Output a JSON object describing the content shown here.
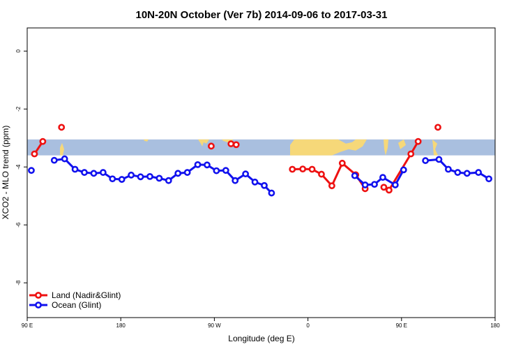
{
  "chart_data": {
    "type": "line",
    "title": "10N-20N October (Ver 7b)   2014-09-06 to 2017-03-31",
    "xlabel": "Longitude (deg E)",
    "ylabel": "XCO2 - MLO trend (ppm)",
    "xlim": [
      90,
      540
    ],
    "ylim": [
      -9.2,
      0.8
    ],
    "x_ticks": [
      {
        "value": 90,
        "label": "90 E"
      },
      {
        "value": 180,
        "label": "180"
      },
      {
        "value": 270,
        "label": "90 W"
      },
      {
        "value": 360,
        "label": "0"
      },
      {
        "value": 450,
        "label": "90 E"
      },
      {
        "value": 540,
        "label": "180"
      }
    ],
    "y_ticks": [
      {
        "value": 0,
        "label": "0"
      },
      {
        "value": -2,
        "label": "-2"
      },
      {
        "value": -4,
        "label": "-4"
      },
      {
        "value": -6,
        "label": "-6"
      },
      {
        "value": -8,
        "label": "-8"
      }
    ],
    "map_band": {
      "y_top": -3.05,
      "y_bottom": -3.6,
      "ocean_color": "#a9bfdf",
      "land_color": "#f6d879"
    },
    "legend": {
      "placement": "bottom-left"
    },
    "series": [
      {
        "name": "Land (Nadir&Glint)",
        "color": "#ee1111",
        "points": [
          {
            "x": 97,
            "y": -3.55
          },
          {
            "x": 105,
            "y": -3.12
          },
          {
            "x": 123,
            "y": -2.63
          },
          {
            "x": 267,
            "y": -3.28
          },
          {
            "x": 286,
            "y": -3.2
          },
          {
            "x": 291,
            "y": -3.23
          },
          {
            "x": 345,
            "y": -4.08
          },
          {
            "x": 355,
            "y": -4.07
          },
          {
            "x": 364,
            "y": -4.08
          },
          {
            "x": 373,
            "y": -4.25
          },
          {
            "x": 383,
            "y": -4.65
          },
          {
            "x": 393,
            "y": -3.87
          },
          {
            "x": 406,
            "y": -4.27
          },
          {
            "x": 415,
            "y": -4.75
          },
          {
            "x": 433,
            "y": -4.7
          },
          {
            "x": 438,
            "y": -4.8
          },
          {
            "x": 459,
            "y": -3.55
          },
          {
            "x": 466,
            "y": -3.12
          },
          {
            "x": 485,
            "y": -2.63
          }
        ],
        "segments": [
          [
            0,
            1
          ],
          [
            6,
            7,
            8,
            9,
            10,
            11,
            12,
            13
          ],
          [
            14,
            15
          ],
          [
            15,
            16,
            17
          ]
        ]
      },
      {
        "name": "Ocean (Glint)",
        "color": "#1111ee",
        "points": [
          {
            "x": 94,
            "y": -4.12
          },
          {
            "x": 116,
            "y": -3.77
          },
          {
            "x": 126,
            "y": -3.72
          },
          {
            "x": 136,
            "y": -4.08
          },
          {
            "x": 145,
            "y": -4.19
          },
          {
            "x": 154,
            "y": -4.22
          },
          {
            "x": 163,
            "y": -4.19
          },
          {
            "x": 172,
            "y": -4.41
          },
          {
            "x": 181,
            "y": -4.43
          },
          {
            "x": 190,
            "y": -4.28
          },
          {
            "x": 199,
            "y": -4.34
          },
          {
            "x": 208,
            "y": -4.33
          },
          {
            "x": 217,
            "y": -4.39
          },
          {
            "x": 226,
            "y": -4.47
          },
          {
            "x": 235,
            "y": -4.22
          },
          {
            "x": 244,
            "y": -4.19
          },
          {
            "x": 254,
            "y": -3.92
          },
          {
            "x": 263,
            "y": -3.93
          },
          {
            "x": 272,
            "y": -4.13
          },
          {
            "x": 281,
            "y": -4.12
          },
          {
            "x": 290,
            "y": -4.47
          },
          {
            "x": 300,
            "y": -4.24
          },
          {
            "x": 309,
            "y": -4.52
          },
          {
            "x": 318,
            "y": -4.64
          },
          {
            "x": 325,
            "y": -4.9
          },
          {
            "x": 405,
            "y": -4.3
          },
          {
            "x": 415,
            "y": -4.62
          },
          {
            "x": 424,
            "y": -4.6
          },
          {
            "x": 432,
            "y": -4.36
          },
          {
            "x": 444,
            "y": -4.62
          },
          {
            "x": 452,
            "y": -4.1
          },
          {
            "x": 473,
            "y": -3.78
          },
          {
            "x": 486,
            "y": -3.74
          },
          {
            "x": 495,
            "y": -4.08
          },
          {
            "x": 504,
            "y": -4.19
          },
          {
            "x": 513,
            "y": -4.22
          },
          {
            "x": 524,
            "y": -4.19
          },
          {
            "x": 534,
            "y": -4.41
          }
        ],
        "segments": [
          [
            1,
            2,
            3,
            4,
            5,
            6,
            7,
            8,
            9,
            10,
            11,
            12,
            13,
            14,
            15,
            16,
            17,
            18,
            19,
            20,
            21,
            22,
            23,
            24
          ],
          [
            25,
            26,
            27,
            28,
            29,
            30
          ],
          [
            31,
            32,
            33,
            34,
            35,
            36,
            37
          ]
        ]
      }
    ]
  }
}
